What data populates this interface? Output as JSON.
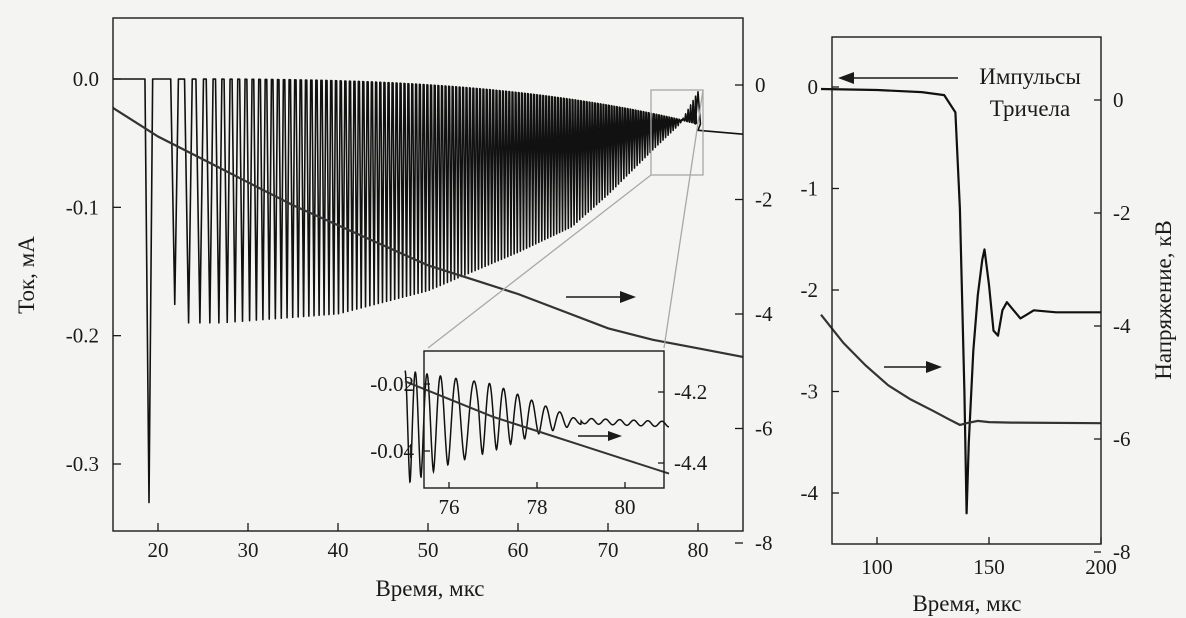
{
  "chart_data": [
    {
      "type": "line",
      "xlabel": "Время, мкс",
      "ylabel": "Ток, мА",
      "y2label": "",
      "xlim": [
        15,
        85
      ],
      "ylim": [
        -0.35,
        0.02
      ],
      "y2lim": [
        -8,
        0.5
      ],
      "xticks": [
        "20",
        "30",
        "40",
        "50",
        "60",
        "70",
        "80"
      ],
      "yticks": [
        "0.0",
        "-0.1",
        "-0.2",
        "-0.3"
      ],
      "y2ticks": [
        "0",
        "-2",
        "-4",
        "-6",
        "-8"
      ],
      "series": [
        {
          "axis": "left",
          "pulse_trace": true,
          "baseline": 0.0,
          "pulses_start_us": 19,
          "pulses_end_us": 80,
          "pulse_count": 140,
          "first_pulse_peak": -0.33,
          "pulse_peaks": [
            [
              19,
              -0.33
            ],
            [
              21.3,
              -0.17
            ],
            [
              23.3,
              -0.19
            ],
            [
              27,
              -0.19
            ],
            [
              40,
              -0.183
            ],
            [
              50,
              -0.165
            ],
            [
              60,
              -0.135
            ],
            [
              66,
              -0.115
            ],
            [
              70,
              -0.09
            ],
            [
              75,
              -0.055
            ],
            [
              78,
              -0.035
            ],
            [
              80,
              -0.01
            ]
          ],
          "after_pulses": [
            [
              80,
              -0.04
            ],
            [
              85,
              -0.043
            ]
          ]
        },
        {
          "axis": "right",
          "points": [
            [
              15,
              -0.4
            ],
            [
              20,
              -0.9
            ],
            [
              25,
              -1.3
            ],
            [
              30,
              -1.7
            ],
            [
              35,
              -2.1
            ],
            [
              40,
              -2.45
            ],
            [
              45,
              -2.8
            ],
            [
              50,
              -3.15
            ],
            [
              55,
              -3.4
            ],
            [
              60,
              -3.65
            ],
            [
              65,
              -3.95
            ],
            [
              70,
              -4.25
            ],
            [
              75,
              -4.45
            ],
            [
              80,
              -4.6
            ],
            [
              85,
              -4.75
            ]
          ]
        }
      ]
    },
    {
      "type": "line",
      "inset": true,
      "xlim": [
        75,
        81
      ],
      "ylim": [
        -0.055,
        -0.01
      ],
      "y2lim": [
        -4.45,
        -4.13
      ],
      "xticks": [
        "76",
        "78",
        "80"
      ],
      "yticks": [
        "-0.02",
        "-0.04"
      ],
      "y2ticks": [
        "-4.2",
        "-4.4"
      ],
      "series": [
        {
          "axis": "left",
          "oscillation": true,
          "points": [
            [
              75,
              -0.016
            ],
            [
              77,
              -0.02
            ],
            [
              79,
              -0.031
            ],
            [
              81,
              -0.032
            ]
          ],
          "envelope_low": [
            [
              75,
              -0.05
            ],
            [
              76,
              -0.044
            ],
            [
              77,
              -0.04
            ],
            [
              78,
              -0.035
            ],
            [
              79,
              -0.032
            ]
          ]
        },
        {
          "axis": "right",
          "points": [
            [
              75,
              -4.17
            ],
            [
              76,
              -4.22
            ],
            [
              77,
              -4.27
            ],
            [
              78,
              -4.31
            ],
            [
              79,
              -4.35
            ],
            [
              80,
              -4.39
            ],
            [
              81,
              -4.43
            ]
          ]
        }
      ]
    },
    {
      "type": "line",
      "xlabel": "Время, мкс",
      "ylabel": "",
      "y2label": "Напряжение, кВ",
      "annotation": [
        "Импульсы",
        "Тричела"
      ],
      "xlim": [
        75,
        200
      ],
      "ylim": [
        -4.5,
        0.5
      ],
      "y2lim": [
        -8,
        1.6
      ],
      "xticks": [
        "100",
        "150",
        "200"
      ],
      "yticks": [
        "0",
        "-1",
        "-2",
        "-3",
        "-4"
      ],
      "y2ticks": [
        "0",
        "-2",
        "-4",
        "-6",
        "-8"
      ],
      "series": [
        {
          "axis": "left",
          "points": [
            [
              75,
              -0.02
            ],
            [
              100,
              -0.03
            ],
            [
              120,
              -0.05
            ],
            [
              130,
              -0.08
            ],
            [
              135,
              -0.25
            ],
            [
              137,
              -1.2
            ],
            [
              139,
              -3.0
            ],
            [
              140,
              -4.2
            ],
            [
              141,
              -3.5
            ],
            [
              143,
              -2.6
            ],
            [
              145,
              -2.05
            ],
            [
              147,
              -1.7
            ],
            [
              148,
              -1.6
            ],
            [
              150,
              -1.95
            ],
            [
              152,
              -2.4
            ],
            [
              154,
              -2.45
            ],
            [
              156,
              -2.2
            ],
            [
              158,
              -2.12
            ],
            [
              161,
              -2.2
            ],
            [
              164,
              -2.28
            ],
            [
              167,
              -2.24
            ],
            [
              170,
              -2.2
            ],
            [
              180,
              -2.22
            ],
            [
              200,
              -2.22
            ]
          ]
        },
        {
          "axis": "right",
          "points": [
            [
              75,
              -3.8
            ],
            [
              85,
              -4.3
            ],
            [
              95,
              -4.7
            ],
            [
              105,
              -5.05
            ],
            [
              115,
              -5.3
            ],
            [
              125,
              -5.5
            ],
            [
              132,
              -5.65
            ],
            [
              137,
              -5.75
            ],
            [
              140,
              -5.72
            ],
            [
              145,
              -5.68
            ],
            [
              150,
              -5.7
            ],
            [
              160,
              -5.71
            ],
            [
              200,
              -5.72
            ]
          ]
        }
      ]
    }
  ]
}
